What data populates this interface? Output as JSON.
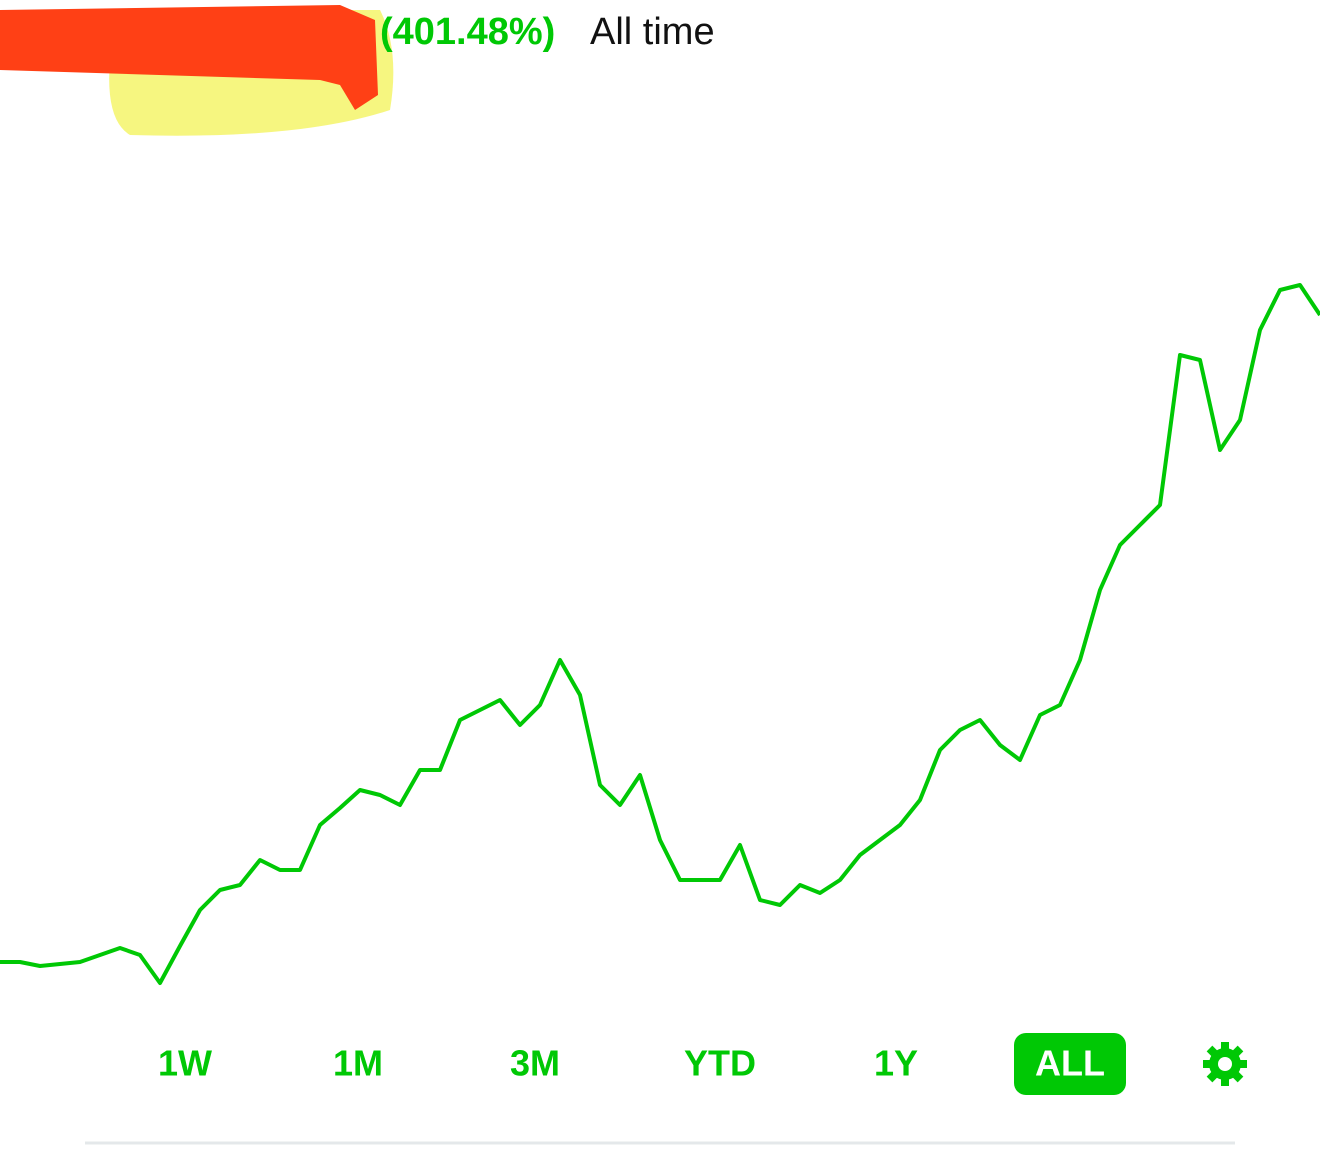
{
  "header": {
    "change": "(401.48%)",
    "period": "All time"
  },
  "chart_data": {
    "type": "line",
    "color": "#00c805",
    "ylim": [
      0,
      80
    ],
    "values": [
      3.8,
      3.8,
      3.4,
      3.6,
      3.8,
      4.5,
      5.2,
      4.5,
      1.7,
      5.4,
      9,
      11,
      11.5,
      14,
      13,
      13,
      17.5,
      19.2,
      21,
      20.5,
      19.5,
      23,
      23,
      28,
      29,
      30,
      27.5,
      29.5,
      34,
      30.5,
      21.5,
      19.5,
      22.5,
      16,
      12,
      12,
      12,
      15.5,
      10,
      9.5,
      11.5,
      10.7,
      12,
      14.5,
      16,
      17.5,
      20,
      25,
      27,
      28,
      25.5,
      24,
      28.5,
      29.5,
      34,
      41,
      45.5,
      47.5,
      49.5,
      64.5,
      64,
      55,
      58,
      67,
      71,
      71.5,
      68.5
    ]
  },
  "ranges": [
    "1W",
    "1M",
    "3M",
    "YTD",
    "1Y",
    "ALL"
  ],
  "selected_range": 5
}
